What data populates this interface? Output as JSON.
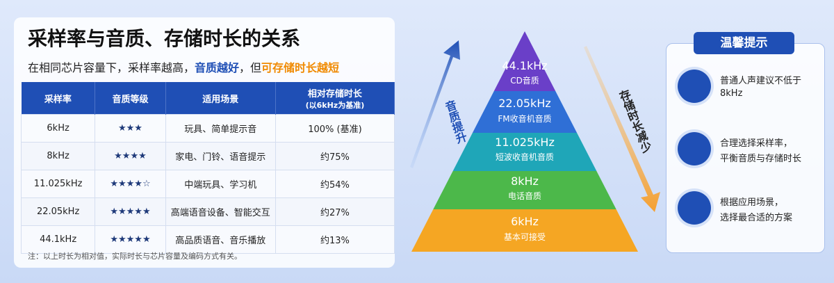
{
  "header": {
    "title": "采样率与音质、存储时长的关系",
    "subtitle": [
      "在相同芯片容量下，采样率越高，",
      "音质越好",
      "，但",
      "可存储时长越短"
    ]
  },
  "table": {
    "header": [
      "采样率",
      "音质等级",
      "适用场景",
      "相对存储时长"
    ],
    "header_note": "(以6kHz为基准)",
    "rows": [
      [
        "6kHz",
        "★★★",
        "玩具、简单提示音",
        "100% (基准)"
      ],
      [
        "8kHz",
        "★★★★",
        "家电、门铃、语音提示",
        "约75%"
      ],
      [
        "11.025kHz",
        "★★★★☆",
        "中端玩具、学习机",
        "约54%"
      ],
      [
        "22.05kHz",
        "★★★★★",
        "高端语音设备、智能交互",
        "约27%"
      ],
      [
        "44.1kHz",
        "★★★★★",
        "高品质语音、音乐播放",
        "约13%"
      ]
    ]
  },
  "note": "注：以上时长为相对值，实际时长与芯片容量及编码方式有关。",
  "pyramid": {
    "levels": [
      {
        "rate": "44.1kHz",
        "label": "CD音质"
      },
      {
        "rate": "22.05kHz",
        "label": "FM收音机音质"
      },
      {
        "rate": "11.025kHz",
        "label": "短波收音机音质"
      },
      {
        "rate": "8kHz",
        "label": "电话音质"
      },
      {
        "rate": "6kHz",
        "label": "基本可接受"
      }
    ],
    "left_arrow": "音质提升",
    "right_arrow": "存储时长减少"
  },
  "tips": {
    "title": "温馨提示",
    "items": [
      [
        "普通人声建议不低于",
        "8kHz"
      ],
      [
        "合理选择采样率，",
        "平衡音质与存储时长"
      ],
      [
        "根据应用场景，",
        "选择最合适的方案"
      ]
    ]
  }
}
